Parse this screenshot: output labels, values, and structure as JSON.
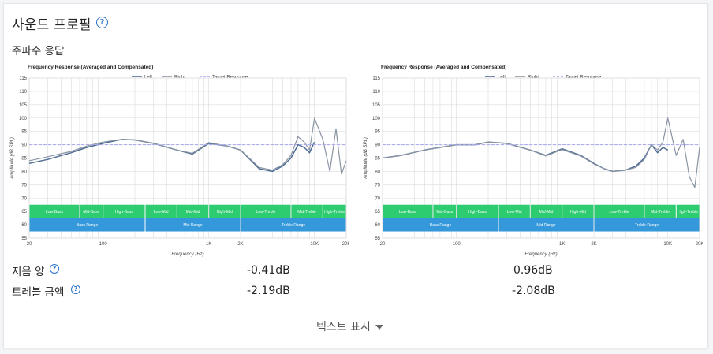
{
  "header": {
    "title": "사운드 프로필",
    "help_icon": "question-circle-icon"
  },
  "section": {
    "label": "주파수 응답"
  },
  "graph_common": {
    "title": "Frequency Response (Averaged and Compensated)",
    "legend": [
      "Left",
      "Right",
      "Target Response"
    ],
    "ylabel": "Amplitude (dB SPL)",
    "xlabel": "Frequency (Hz)",
    "y_ticks": [
      "115",
      "110",
      "105",
      "100",
      "95",
      "90",
      "85",
      "80",
      "75",
      "70",
      "65",
      "60",
      "55"
    ],
    "x_ticks": [
      "20",
      "100",
      "1K",
      "2K",
      "10K",
      "20K"
    ],
    "bands_top": [
      "Low-Bass",
      "Mid-Bass",
      "High-Bass",
      "Low-Mid",
      "Mid-Mid",
      "High-Mid",
      "Low-Treble",
      "Mid-Treble",
      "High-Treble"
    ],
    "bands_bottom": [
      "Bass Range",
      "Mid Range",
      "Treble Range"
    ],
    "colors": {
      "left": "#4f6c93",
      "right": "#8a94a3",
      "target": "#a8a8f0",
      "bands_top": "#2ecc71",
      "bands_bottom": "#3498db",
      "grid": "#dcdcdc"
    }
  },
  "chart_data": [
    {
      "type": "line",
      "title": "Frequency Response (Averaged and Compensated)",
      "xlabel": "Frequency (Hz)",
      "ylabel": "Amplitude (dB SPL)",
      "xscale": "log",
      "xlim": [
        20,
        20000
      ],
      "ylim": [
        55,
        115
      ],
      "grid": true,
      "legend": "top-center",
      "series": [
        {
          "name": "Left",
          "x": [
            20,
            30,
            50,
            70,
            100,
            150,
            200,
            300,
            500,
            700,
            1000,
            1500,
            2000,
            3000,
            4000,
            5000,
            6000,
            7000,
            8000,
            9000,
            10000
          ],
          "y": [
            83,
            84.5,
            87,
            89,
            90.5,
            92,
            91.8,
            90.5,
            88,
            86.5,
            90.5,
            89.5,
            88,
            81,
            80,
            82,
            85,
            90,
            89,
            87,
            91
          ]
        },
        {
          "name": "Right",
          "x": [
            20,
            30,
            50,
            70,
            100,
            150,
            200,
            300,
            500,
            700,
            1000,
            1500,
            2000,
            3000,
            4000,
            5000,
            6000,
            7000,
            8000,
            9000,
            10000,
            12000,
            14000,
            16000,
            18000,
            20000
          ],
          "y": [
            84,
            85.5,
            87.5,
            89.5,
            91,
            92,
            91.8,
            90.5,
            88,
            86.8,
            90.8,
            89.5,
            88,
            81.5,
            80.5,
            82.5,
            86,
            93,
            91,
            88,
            100,
            92,
            80,
            96,
            79,
            84
          ]
        },
        {
          "name": "Target Response",
          "x": [
            20,
            20000
          ],
          "y": [
            90,
            90
          ]
        }
      ]
    },
    {
      "type": "line",
      "title": "Frequency Response (Averaged and Compensated)",
      "xlabel": "Frequency (Hz)",
      "ylabel": "Amplitude (dB SPL)",
      "xscale": "log",
      "xlim": [
        20,
        20000
      ],
      "ylim": [
        55,
        115
      ],
      "grid": true,
      "legend": "top-center",
      "series": [
        {
          "name": "Left",
          "x": [
            20,
            30,
            50,
            70,
            100,
            150,
            200,
            300,
            500,
            700,
            1000,
            1500,
            2000,
            2500,
            3000,
            4000,
            5000,
            6000,
            7000,
            8000,
            9000,
            10000
          ],
          "y": [
            85,
            86,
            88,
            89,
            90,
            90,
            91,
            90.5,
            88,
            86,
            88.5,
            86,
            83,
            81,
            80,
            80.5,
            82,
            85,
            90,
            87,
            89,
            88
          ]
        },
        {
          "name": "Right",
          "x": [
            20,
            30,
            50,
            70,
            100,
            150,
            200,
            300,
            500,
            700,
            1000,
            1500,
            2000,
            2500,
            3000,
            4000,
            5000,
            6000,
            7000,
            8000,
            9000,
            10000,
            12000,
            14000,
            16000,
            18000,
            20000
          ],
          "y": [
            85,
            86,
            88,
            89,
            90,
            90,
            91,
            90.5,
            88,
            85.8,
            88.2,
            85.8,
            82.8,
            81,
            80,
            80.5,
            81.5,
            84.5,
            90,
            88,
            91,
            100,
            86,
            92,
            78,
            74,
            89
          ]
        },
        {
          "name": "Target Response",
          "x": [
            20,
            20000
          ],
          "y": [
            90,
            90
          ]
        }
      ]
    }
  ],
  "metrics": [
    {
      "label": "저음 양",
      "help_icon": "question-circle-icon",
      "values": [
        "-0.41dB",
        "0.96dB"
      ]
    },
    {
      "label": "트레블 금액",
      "help_icon": "question-circle-icon",
      "values": [
        "-2.19dB",
        "-2.08dB"
      ]
    }
  ],
  "show_text": {
    "label": "텍스트 표시",
    "icon": "caret-down-icon"
  }
}
